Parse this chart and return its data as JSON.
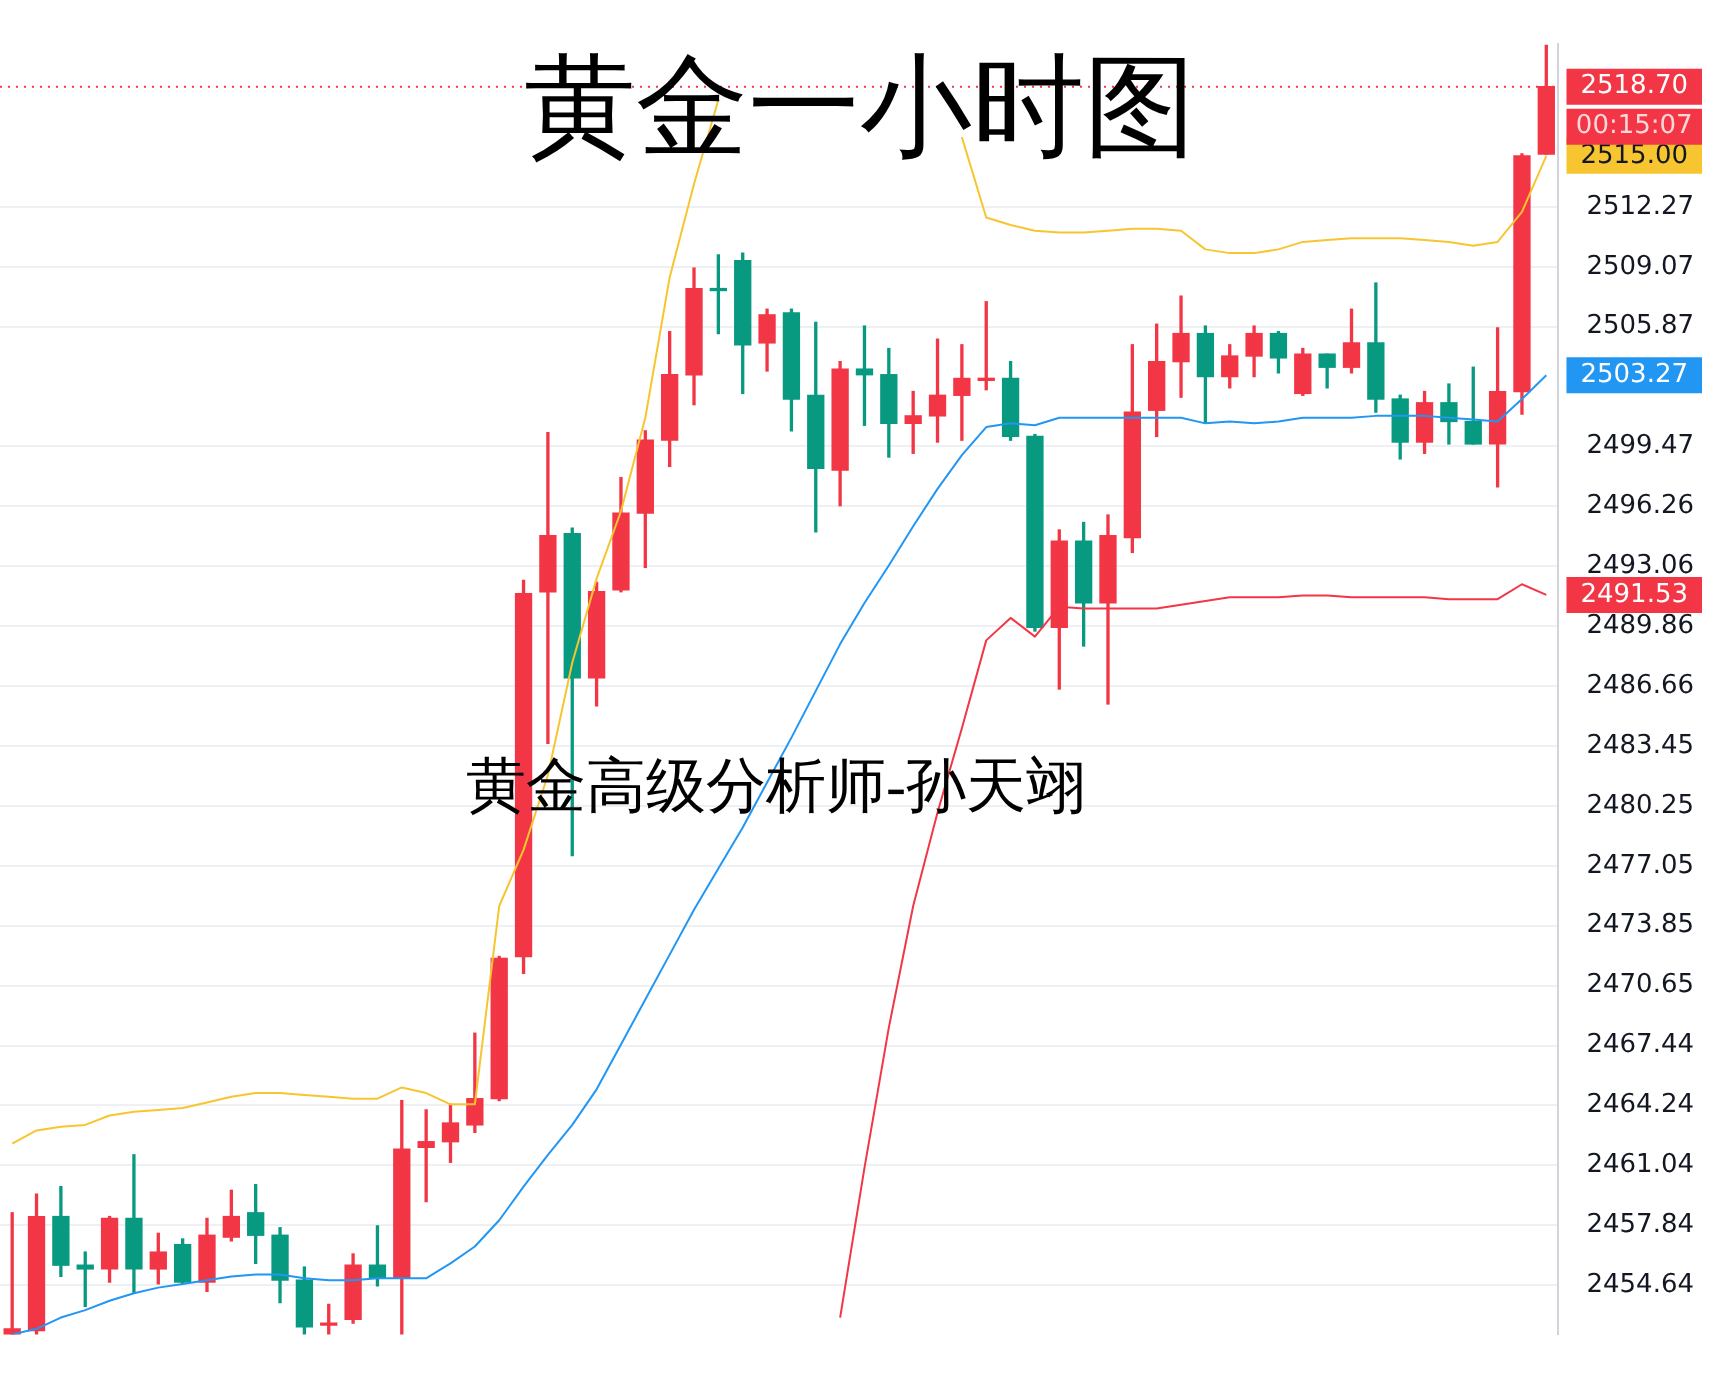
{
  "chart_data": {
    "type": "candlestick",
    "title": "黄金一小时图",
    "annotations": [
      "黄金高级分析师-孙天翊",
      "00:15:07"
    ],
    "categories": [
      null,
      null,
      null,
      null,
      null,
      null,
      null,
      null,
      null,
      null,
      null,
      null,
      null,
      null,
      null,
      null,
      null,
      null,
      null,
      null,
      null,
      null,
      null,
      null,
      null,
      null,
      null,
      null,
      null,
      null,
      null,
      null,
      null,
      null,
      null,
      null,
      null,
      null,
      null,
      null,
      null,
      null,
      null,
      null,
      null,
      null,
      null,
      null,
      null,
      null,
      null,
      null,
      null,
      null,
      null,
      null,
      null,
      null,
      null,
      null,
      null,
      null,
      null,
      null
    ],
    "ohlc": [
      [
        2452.0,
        2458.5,
        2452.0,
        2452.3
      ],
      [
        2452.2,
        2459.5,
        2452.0,
        2458.3
      ],
      [
        2458.3,
        2459.9,
        2455.1,
        2455.7
      ],
      [
        2455.7,
        2456.4,
        2453.5,
        2455.5
      ],
      [
        2455.5,
        2458.3,
        2454.8,
        2458.2
      ],
      [
        2458.2,
        2461.6,
        2454.2,
        2455.5
      ],
      [
        2455.5,
        2457.4,
        2454.7,
        2456.4
      ],
      [
        2456.8,
        2457.1,
        2454.7,
        2454.8
      ],
      [
        2454.8,
        2458.2,
        2454.3,
        2457.3
      ],
      [
        2457.2,
        2459.7,
        2457.0,
        2458.3
      ],
      [
        2458.5,
        2460.0,
        2455.8,
        2457.3
      ],
      [
        2457.3,
        2457.7,
        2453.7,
        2454.9
      ],
      [
        2454.9,
        2455.6,
        2452.0,
        2452.4
      ],
      [
        2452.5,
        2453.6,
        2452.0,
        2452.6
      ],
      [
        2452.8,
        2456.3,
        2452.6,
        2455.7
      ],
      [
        2455.7,
        2457.8,
        2454.6,
        2455.0
      ],
      [
        2455.0,
        2464.5,
        2452.0,
        2461.9
      ],
      [
        2462.0,
        2464.0,
        2459.1,
        2462.3
      ],
      [
        2462.3,
        2464.3,
        2461.2,
        2463.3
      ],
      [
        2463.2,
        2468.1,
        2462.8,
        2464.6
      ],
      [
        2464.6,
        2472.2,
        2464.5,
        2472.1
      ],
      [
        2472.2,
        2492.3,
        2471.3,
        2491.6
      ],
      [
        2491.7,
        2500.2,
        2483.6,
        2494.7
      ],
      [
        2494.8,
        2495.1,
        2477.6,
        2487.1
      ],
      [
        2487.1,
        2492.2,
        2485.6,
        2491.7
      ],
      [
        2491.8,
        2497.8,
        2491.7,
        2495.9
      ],
      [
        2495.9,
        2500.3,
        2493.0,
        2499.8
      ],
      [
        2499.8,
        2505.6,
        2498.4,
        2503.3
      ],
      [
        2503.3,
        2509.0,
        2501.7,
        2507.9
      ],
      [
        2507.9,
        2509.7,
        2505.5,
        2507.8
      ],
      [
        2509.4,
        2509.8,
        2502.3,
        2504.9
      ],
      [
        2505.0,
        2506.8,
        2503.5,
        2506.5
      ],
      [
        2506.6,
        2506.8,
        2500.3,
        2502.0
      ],
      [
        2502.2,
        2506.1,
        2494.9,
        2498.3
      ],
      [
        2498.2,
        2504.0,
        2496.3,
        2503.6
      ],
      [
        2503.6,
        2505.9,
        2500.6,
        2503.3
      ],
      [
        2503.3,
        2504.7,
        2498.9,
        2500.7
      ],
      [
        2500.7,
        2502.4,
        2499.1,
        2501.1
      ],
      [
        2501.1,
        2505.2,
        2499.7,
        2502.2
      ],
      [
        2502.2,
        2504.9,
        2499.8,
        2503.1
      ],
      [
        2503.0,
        2507.2,
        2502.5,
        2503.1
      ],
      [
        2503.1,
        2504.0,
        2499.8,
        2500.0
      ],
      [
        2500.0,
        2500.1,
        2489.6,
        2489.8
      ],
      [
        2489.8,
        2495.0,
        2486.5,
        2494.4
      ],
      [
        2494.4,
        2495.4,
        2488.8,
        2491.1
      ],
      [
        2491.1,
        2495.8,
        2485.7,
        2494.7
      ],
      [
        2494.6,
        2504.9,
        2493.8,
        2501.3
      ],
      [
        2501.4,
        2506.0,
        2500.0,
        2504.0
      ],
      [
        2504.0,
        2507.5,
        2502.1,
        2505.5
      ],
      [
        2505.5,
        2505.9,
        2500.7,
        2503.2
      ],
      [
        2503.2,
        2504.9,
        2502.6,
        2504.3
      ],
      [
        2504.3,
        2505.9,
        2503.2,
        2505.5
      ],
      [
        2505.5,
        2505.6,
        2503.4,
        2504.2
      ],
      [
        2502.3,
        2504.7,
        2502.2,
        2504.4
      ],
      [
        2504.4,
        2504.4,
        2502.6,
        2503.7
      ],
      [
        2503.7,
        2506.8,
        2503.4,
        2505.0
      ],
      [
        2505.0,
        2508.2,
        2501.3,
        2502.0
      ],
      [
        2502.0,
        2502.2,
        2498.8,
        2499.7
      ],
      [
        2499.7,
        2502.4,
        2499.1,
        2501.8
      ],
      [
        2501.8,
        2502.8,
        2499.6,
        2500.8
      ],
      [
        2500.8,
        2503.7,
        2499.6,
        2499.6
      ],
      [
        2499.6,
        2505.8,
        2497.3,
        2502.4
      ],
      [
        2502.4,
        2515.1,
        2501.2,
        2515.0
      ],
      [
        2515.1,
        2520.9,
        2515.1,
        2518.7
      ]
    ],
    "colors": [
      "#f23645",
      "#f23645",
      "#089981",
      "#089981",
      "#f23645",
      "#089981",
      "#f23645",
      "#089981",
      "#f23645",
      "#f23645",
      "#089981",
      "#089981",
      "#089981",
      "#f23645",
      "#f23645",
      "#089981",
      "#f23645",
      "#f23645",
      "#f23645",
      "#f23645",
      "#f23645",
      "#f23645",
      "#f23645",
      "#089981",
      "#f23645",
      "#f23645",
      "#f23645",
      "#f23645",
      "#f23645",
      "#089981",
      "#089981",
      "#f23645",
      "#089981",
      "#089981",
      "#f23645",
      "#089981",
      "#089981",
      "#f23645",
      "#f23645",
      "#f23645",
      "#f23645",
      "#089981",
      "#089981",
      "#f23645",
      "#089981",
      "#f23645",
      "#f23645",
      "#f23645",
      "#f23645",
      "#089981",
      "#f23645",
      "#f23645",
      "#089981",
      "#f23645",
      "#089981",
      "#f23645",
      "#089981",
      "#089981",
      "#f23645",
      "#089981",
      "#089981",
      "#f23645",
      "#f23645",
      "#f23645"
    ],
    "series": [
      {
        "type": "line",
        "color": "#f7c530",
        "values": [
          2462.2,
          2462.9,
          2463.1,
          2463.2,
          2463.7,
          2463.9,
          2464.0,
          2464.1,
          2464.4,
          2464.7,
          2464.9,
          2464.9,
          2464.8,
          2464.7,
          2464.6,
          2464.6,
          2465.2,
          2464.9,
          2464.3,
          2464.3,
          2474.9,
          2477.9,
          2481.9,
          2487.9,
          2492.4,
          2496.0,
          2501.0,
          2508.5,
          2513.5,
          2518.0,
          null,
          null,
          null,
          null,
          null,
          null,
          null,
          null,
          null,
          2516.0,
          2511.7,
          2511.3,
          2511.0,
          2510.9,
          2510.9,
          2511.0,
          2511.1,
          2511.1,
          2511.0,
          2510.0,
          2509.8,
          2509.8,
          2510.0,
          2510.4,
          2510.5,
          2510.6,
          2510.6,
          2510.6,
          2510.5,
          2510.4,
          2510.2,
          2510.4,
          2512.0,
          2515.0
        ],
        "value_labels": [
          null,
          null,
          null,
          null,
          null,
          null,
          null,
          null,
          null,
          null,
          null,
          null,
          null,
          null,
          null,
          null,
          null,
          null,
          null,
          null,
          null,
          null,
          null,
          null,
          null,
          null,
          null,
          null,
          null,
          null,
          null,
          null,
          null,
          null,
          null,
          null,
          null,
          null,
          null,
          null,
          null,
          null,
          null,
          null,
          null,
          null,
          null,
          null,
          null,
          null,
          null,
          null,
          null,
          null,
          null,
          null,
          null,
          null,
          null,
          null,
          null,
          null,
          null,
          "2515.00"
        ]
      },
      {
        "type": "line",
        "color": "#2196f3",
        "values": [
          2452.0,
          2452.3,
          2452.9,
          2453.3,
          2453.8,
          2454.2,
          2454.5,
          2454.7,
          2454.9,
          2455.1,
          2455.2,
          2455.2,
          2455.0,
          2454.9,
          2454.9,
          2455.0,
          2455.0,
          2455.0,
          2455.8,
          2456.7,
          2458.1,
          2459.9,
          2461.6,
          2463.2,
          2465.1,
          2467.5,
          2469.9,
          2472.3,
          2474.7,
          2476.9,
          2479.1,
          2481.5,
          2483.9,
          2486.4,
          2488.9,
          2491.1,
          2493.1,
          2495.2,
          2497.2,
          2499.0,
          2500.5,
          2500.7,
          2500.6,
          2501.0,
          2501.0,
          2501.0,
          2501.0,
          2501.0,
          2501.0,
          2500.7,
          2500.8,
          2500.7,
          2500.8,
          2501.0,
          2501.0,
          2501.0,
          2501.1,
          2501.1,
          2501.1,
          2501.0,
          2500.9,
          2500.8,
          2502.0,
          2503.27
        ],
        "value_labels": [
          null,
          null,
          null,
          null,
          null,
          null,
          null,
          null,
          null,
          null,
          null,
          null,
          null,
          null,
          null,
          null,
          null,
          null,
          null,
          null,
          null,
          null,
          null,
          null,
          null,
          null,
          null,
          null,
          null,
          null,
          null,
          null,
          null,
          null,
          null,
          null,
          null,
          null,
          null,
          null,
          null,
          null,
          null,
          null,
          null,
          null,
          null,
          null,
          null,
          null,
          null,
          null,
          null,
          null,
          null,
          null,
          null,
          null,
          null,
          null,
          null,
          null,
          null,
          "2503.27"
        ]
      },
      {
        "type": "line",
        "color": "#f23645",
        "values": [
          null,
          null,
          null,
          null,
          null,
          null,
          null,
          null,
          null,
          null,
          null,
          null,
          null,
          null,
          null,
          null,
          null,
          null,
          null,
          null,
          null,
          null,
          null,
          null,
          null,
          null,
          null,
          null,
          null,
          null,
          null,
          null,
          null,
          null,
          2452.9,
          2460.9,
          2468.4,
          2474.9,
          2479.9,
          2484.4,
          2489.1,
          2490.3,
          2489.3,
          2490.9,
          2490.8,
          2490.8,
          2490.8,
          2490.8,
          2491.0,
          2491.2,
          2491.4,
          2491.4,
          2491.4,
          2491.5,
          2491.5,
          2491.4,
          2491.4,
          2491.4,
          2491.4,
          2491.3,
          2491.3,
          2491.3,
          2492.1,
          2491.53
        ],
        "value_labels": [
          null,
          null,
          null,
          null,
          null,
          null,
          null,
          null,
          null,
          null,
          null,
          null,
          null,
          null,
          null,
          null,
          null,
          null,
          null,
          null,
          null,
          null,
          null,
          null,
          null,
          null,
          null,
          null,
          null,
          null,
          null,
          null,
          null,
          null,
          null,
          null,
          null,
          null,
          null,
          null,
          null,
          null,
          null,
          null,
          null,
          null,
          null,
          null,
          null,
          null,
          null,
          null,
          null,
          null,
          null,
          null,
          null,
          null,
          null,
          null,
          null,
          null,
          null,
          "2491.53"
        ]
      }
    ],
    "ylim": [
      2452.0,
      2521.0
    ],
    "yticks": [
      2454.64,
      2457.84,
      2461.04,
      2464.24,
      2467.44,
      2470.65,
      2473.85,
      2477.05,
      2480.25,
      2483.45,
      2486.66,
      2489.86,
      2493.06,
      2496.26,
      2499.47,
      2505.87,
      2509.07,
      2512.27
    ],
    "ref_lines": [
      {
        "axis": "y",
        "value": 2518.7,
        "label": "2518.70",
        "color": "#f23645",
        "line_style": "dotted"
      }
    ],
    "grid": "y",
    "legend": false,
    "tick_labels": "y",
    "marker": "none"
  }
}
